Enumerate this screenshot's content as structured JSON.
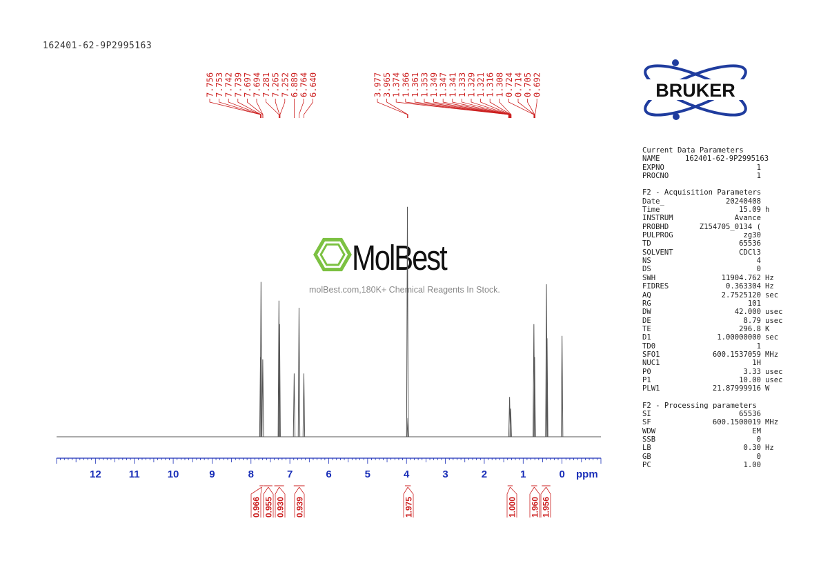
{
  "sample_id": "162401-62-9P2995163",
  "logo_text": "BRUKER",
  "watermark": {
    "brand": "MolBest",
    "tagline": "molBest.com,180K+ Chemical Reagents In Stock."
  },
  "parameters": {
    "current": {
      "title": "Current Data Parameters",
      "rows": [
        {
          "key": "NAME",
          "value": "162401-62-9P2995163",
          "unit": ""
        },
        {
          "key": "EXPNO",
          "value": "1",
          "unit": ""
        },
        {
          "key": "PROCNO",
          "value": "1",
          "unit": ""
        }
      ]
    },
    "acquisition": {
      "title": "F2 - Acquisition Parameters",
      "rows": [
        {
          "key": "Date_",
          "value": "20240408",
          "unit": ""
        },
        {
          "key": "Time",
          "value": "15.09",
          "unit": "h"
        },
        {
          "key": "INSTRUM",
          "value": "Avance",
          "unit": ""
        },
        {
          "key": "PROBHD",
          "value": "Z154705_0134 (",
          "unit": ""
        },
        {
          "key": "PULPROG",
          "value": "zg30",
          "unit": ""
        },
        {
          "key": "TD",
          "value": "65536",
          "unit": ""
        },
        {
          "key": "SOLVENT",
          "value": "CDCl3",
          "unit": ""
        },
        {
          "key": "NS",
          "value": "4",
          "unit": ""
        },
        {
          "key": "DS",
          "value": "0",
          "unit": ""
        },
        {
          "key": "SWH",
          "value": "11904.762",
          "unit": "Hz"
        },
        {
          "key": "FIDRES",
          "value": "0.363304",
          "unit": "Hz"
        },
        {
          "key": "AQ",
          "value": "2.7525120",
          "unit": "sec"
        },
        {
          "key": "RG",
          "value": "101",
          "unit": ""
        },
        {
          "key": "DW",
          "value": "42.000",
          "unit": "usec"
        },
        {
          "key": "DE",
          "value": "8.79",
          "unit": "usec"
        },
        {
          "key": "TE",
          "value": "296.8",
          "unit": "K"
        },
        {
          "key": "D1",
          "value": "1.00000000",
          "unit": "sec"
        },
        {
          "key": "TD0",
          "value": "1",
          "unit": ""
        },
        {
          "key": "SFO1",
          "value": "600.1537059",
          "unit": "MHz"
        },
        {
          "key": "NUC1",
          "value": "1H",
          "unit": ""
        },
        {
          "key": "P0",
          "value": "3.33",
          "unit": "usec"
        },
        {
          "key": "P1",
          "value": "10.00",
          "unit": "usec"
        },
        {
          "key": "PLW1",
          "value": "21.87999916",
          "unit": "W"
        }
      ]
    },
    "processing": {
      "title": "F2 - Processing parameters",
      "rows": [
        {
          "key": "SI",
          "value": "65536",
          "unit": ""
        },
        {
          "key": "SF",
          "value": "600.1500019",
          "unit": "MHz"
        },
        {
          "key": "WDW",
          "value": "EM",
          "unit": ""
        },
        {
          "key": "SSB",
          "value": "0",
          "unit": ""
        },
        {
          "key": "LB",
          "value": "0.30",
          "unit": "Hz"
        },
        {
          "key": "GB",
          "value": "0",
          "unit": ""
        },
        {
          "key": "PC",
          "value": "1.00",
          "unit": ""
        }
      ]
    }
  },
  "chart_data": {
    "type": "line",
    "xlabel": "ppm",
    "xlim": [
      13.0,
      -1.0
    ],
    "x_reversed": true,
    "x_ticks": [
      12,
      11,
      10,
      9,
      8,
      7,
      6,
      5,
      4,
      3,
      2,
      1,
      0
    ],
    "x_ticks_labels": [
      "12",
      "11",
      "10",
      "9",
      "8",
      "7",
      "6",
      "5",
      "4",
      "3",
      "2",
      "1",
      "0"
    ],
    "peaks": [
      {
        "x": 7.756,
        "y": 0.34
      },
      {
        "x": 7.742,
        "y": 0.66
      },
      {
        "x": 7.697,
        "y": 0.33
      },
      {
        "x": 7.281,
        "y": 0.58
      },
      {
        "x": 7.265,
        "y": 0.48
      },
      {
        "x": 6.889,
        "y": 0.27
      },
      {
        "x": 6.764,
        "y": 0.55
      },
      {
        "x": 6.64,
        "y": 0.27
      },
      {
        "x": 3.977,
        "y": 0.98
      },
      {
        "x": 3.965,
        "y": 0.08
      },
      {
        "x": 1.349,
        "y": 0.17
      },
      {
        "x": 1.321,
        "y": 0.12
      },
      {
        "x": 0.724,
        "y": 0.48
      },
      {
        "x": 0.705,
        "y": 0.34
      },
      {
        "x": 0.401,
        "y": 0.65
      },
      {
        "x": 0.385,
        "y": 0.42
      },
      {
        "x": 0.0,
        "y": 0.43
      }
    ],
    "peak_label_groups": [
      {
        "labels": [
          "7.756",
          "7.753",
          "7.742",
          "7.739",
          "7.697",
          "7.694",
          "7.281",
          "7.265",
          "7.252",
          "6.889",
          "6.764",
          "6.640"
        ],
        "anchors": [
          7.756,
          7.753,
          7.742,
          7.739,
          7.697,
          7.694,
          7.281,
          7.265,
          7.252,
          6.889,
          6.764,
          6.64
        ]
      },
      {
        "labels": [
          "3.977",
          "3.965",
          "1.374",
          "1.366",
          "1.361",
          "1.353",
          "1.349",
          "1.347",
          "1.341",
          "1.333",
          "1.329",
          "1.321",
          "1.316",
          "1.308",
          "0.724",
          "0.714",
          "0.705",
          "0.692"
        ],
        "anchors": [
          3.977,
          3.965,
          1.374,
          1.366,
          1.361,
          1.353,
          1.349,
          1.347,
          1.341,
          1.333,
          1.329,
          1.321,
          1.316,
          1.308,
          0.724,
          0.714,
          0.705,
          0.692
        ]
      }
    ],
    "integrals": [
      {
        "value": "0.966",
        "from": 7.78,
        "to": 7.67
      },
      {
        "value": "0.955",
        "from": 7.66,
        "to": 7.45
      },
      {
        "value": "0.930",
        "from": 7.4,
        "to": 7.15
      },
      {
        "value": "0.939",
        "from": 6.9,
        "to": 6.62
      },
      {
        "value": "1.975",
        "from": 4.04,
        "to": 3.89
      },
      {
        "value": "1.000",
        "from": 1.4,
        "to": 1.27
      },
      {
        "value": "1.960",
        "from": 0.79,
        "to": 0.64
      },
      {
        "value": "1.956",
        "from": 0.52,
        "to": 0.3
      }
    ],
    "colors": {
      "spectrum": "#555555",
      "axis": "#1a2fb8",
      "labels": "#cc1f1f",
      "logo_blue": "#1f3c9e",
      "watermark_green": "#7cc142"
    }
  }
}
